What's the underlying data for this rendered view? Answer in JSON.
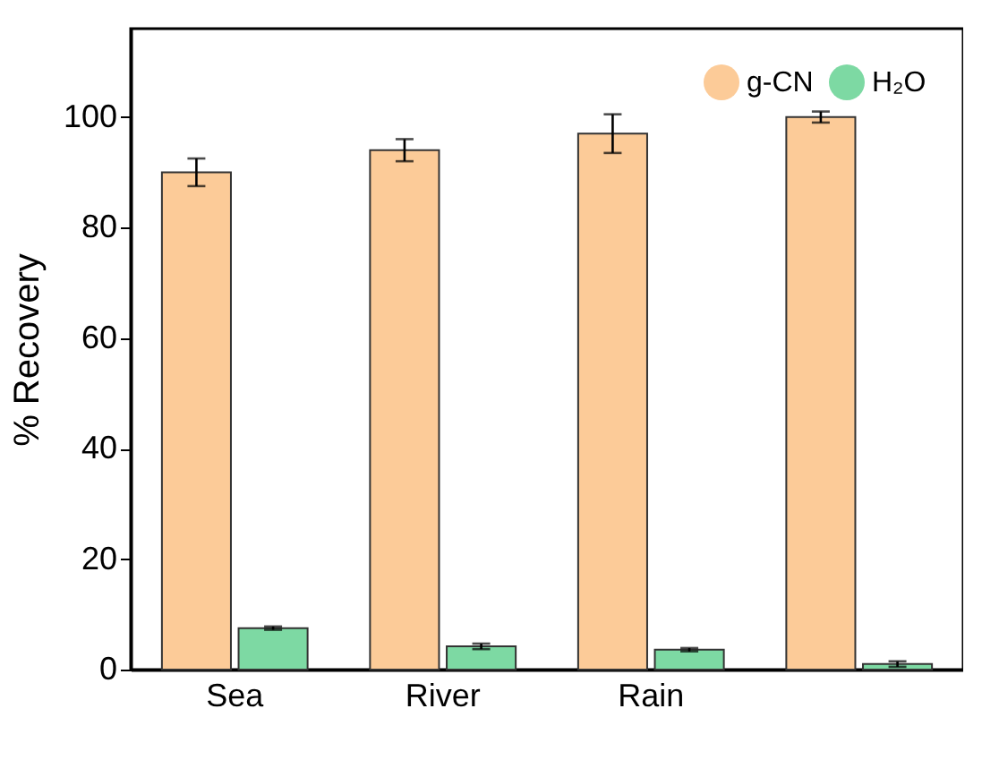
{
  "chart_data": {
    "type": "bar",
    "ylabel": "% Recovery",
    "categories": [
      "Sea",
      "River",
      "Rain",
      null
    ],
    "series": [
      {
        "name": "g-CN",
        "color": "#fccb98",
        "values": [
          90,
          94,
          97,
          100
        ],
        "errors": [
          2.5,
          2,
          3.5,
          1
        ]
      },
      {
        "name": "H₂O",
        "color": "#7dd9a3",
        "values": [
          7.5,
          4.2,
          3.6,
          1
        ],
        "errors": [
          0.3,
          0.5,
          0.3,
          0.5
        ]
      }
    ],
    "ylim": [
      0,
      116
    ],
    "yticks": [
      0,
      20,
      40,
      60,
      80,
      100
    ],
    "grid": false,
    "legend": "top right"
  }
}
